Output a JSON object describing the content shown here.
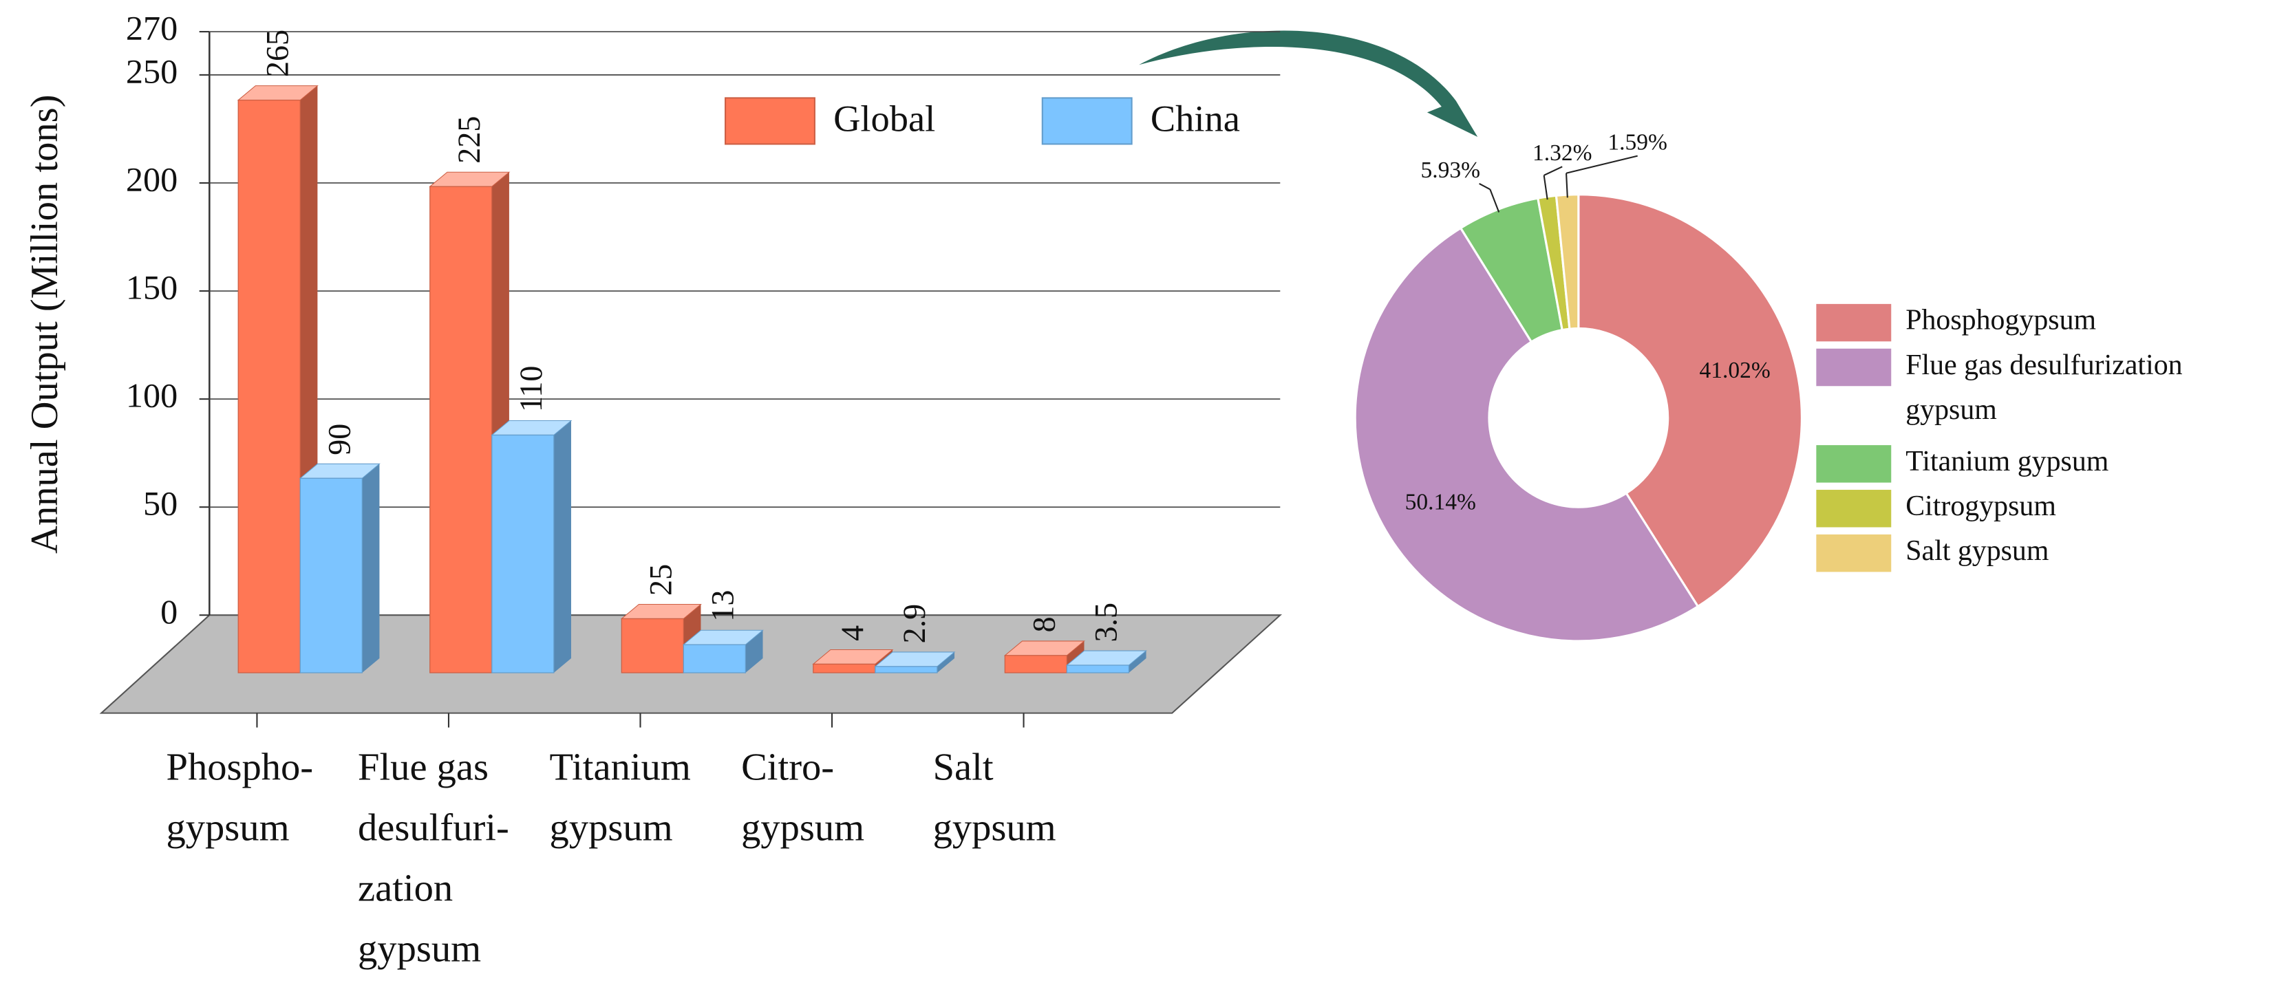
{
  "chart_data": [
    {
      "type": "bar3d",
      "y_label": "Annual Output (Million tons)",
      "categories": [
        "Phospho-\ngypsum",
        "Flue gas\ndesulfuri-\nzation\ngypsum",
        "Titanium\ngypsum",
        "Citro-\ngypsum",
        "Salt\ngypsum"
      ],
      "series": [
        {
          "name": "Global",
          "color": "#ff7755",
          "label_color": "#e15c3c",
          "values": [
            265,
            225,
            25,
            4,
            8
          ]
        },
        {
          "name": "China",
          "color": "#7cc4ff",
          "label_color": "#5b9bd5",
          "values": [
            90,
            110,
            13,
            2.9,
            3.5
          ]
        }
      ],
      "ylim": [
        0,
        270
      ],
      "yticks": [
        0,
        50,
        100,
        150,
        200,
        250,
        270
      ],
      "grid": true,
      "legend": "top"
    },
    {
      "type": "donut",
      "categories": [
        "Phosphogypsum",
        "Flue gas desulfurization\ngypsum",
        "Titanium gypsum",
        "Citrogypsum",
        "Salt gypsum"
      ],
      "values": [
        41.02,
        50.14,
        5.93,
        1.32,
        1.59
      ],
      "value_labels": [
        "41.02%",
        "50.14%",
        "5.93%",
        "1.32%",
        "1.59%"
      ],
      "colors": [
        "#e08080",
        "#bc8fc0",
        "#7dc873",
        "#c6c844",
        "#edcf7a"
      ],
      "legend": "right"
    }
  ]
}
